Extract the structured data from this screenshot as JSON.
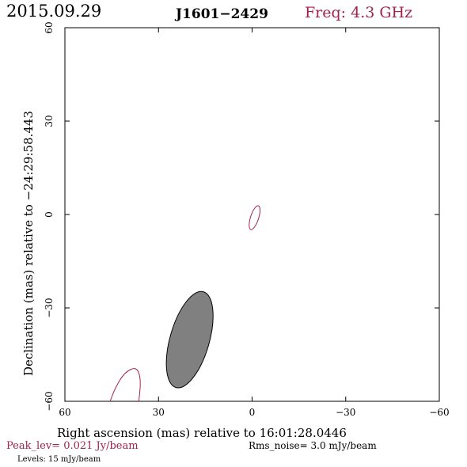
{
  "header": {
    "date": "2015.09.29",
    "source": "J1601−2429",
    "freq": "Freq: 4.3 GHz"
  },
  "chart_data": {
    "type": "contour",
    "xlabel": "Right ascension (mas) relative to 16:01:28.0446",
    "ylabel": "Declination (mas) relative to −24:29:58.443",
    "xlim": [
      60,
      -60
    ],
    "ylim": [
      -60,
      60
    ],
    "xticks": [
      60,
      30,
      0,
      -30,
      -60
    ],
    "yticks": [
      60,
      30,
      0,
      -30,
      -60
    ],
    "xtick_labels": [
      "60",
      "30",
      "0",
      "−30",
      "−60"
    ],
    "ytick_labels": [
      "60",
      "30",
      "0",
      "−30",
      "−60"
    ],
    "contours": [
      {
        "name": "central-contour",
        "shape": "ellipse",
        "cx": -0.8,
        "cy": -1.0,
        "rx": 1.3,
        "ry": 4.0,
        "rotation_deg": 18,
        "color": "#a0244a"
      },
      {
        "name": "edge-contour",
        "shape": "arc",
        "color": "#a0244a",
        "points": [
          [
            36.3,
            -60
          ],
          [
            35.6,
            -53
          ],
          [
            37.0,
            -48.8
          ],
          [
            41.0,
            -50.8
          ],
          [
            44.0,
            -56
          ],
          [
            45.5,
            -60
          ]
        ]
      }
    ],
    "beam": {
      "cx": 20.0,
      "cy": -40.2,
      "rx": 6.3,
      "ry": 16.0,
      "rotation_deg": 16,
      "color": "#808080"
    }
  },
  "footer": {
    "peak": "Peak_lev=  0.021 Jy/beam",
    "rms": "Rms_noise=   3.0 mJy/beam",
    "levels": "Levels:  15 mJy/beam"
  },
  "colors": {
    "accent": "#a0244a",
    "beam_fill": "#808080"
  }
}
